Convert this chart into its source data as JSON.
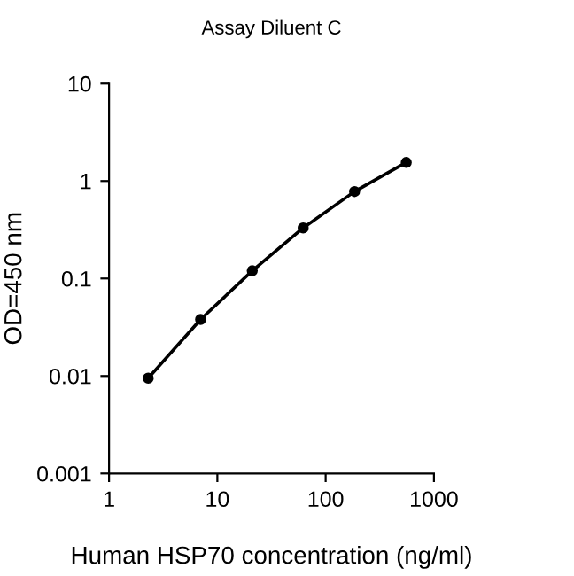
{
  "chart_data": {
    "type": "line",
    "title": "Assay Diluent C",
    "xlabel": "Human HSP70 concentration (ng/ml)",
    "ylabel": "OD=450 nm",
    "x": [
      2.3,
      7,
      21,
      62,
      185,
      555
    ],
    "series": [
      {
        "color": "#000000",
        "values": [
          0.0095,
          0.038,
          0.12,
          0.33,
          0.78,
          1.55
        ]
      }
    ],
    "log": "xy",
    "xlim": [
      1,
      1000
    ],
    "xticks": [
      1,
      10,
      100,
      1000
    ],
    "ylim": [
      0.001,
      10
    ],
    "yticks": [
      0.001,
      0.01,
      0.1,
      1,
      10
    ],
    "marker": "circle",
    "line_style": "solid",
    "grid": false,
    "legend": false
  }
}
